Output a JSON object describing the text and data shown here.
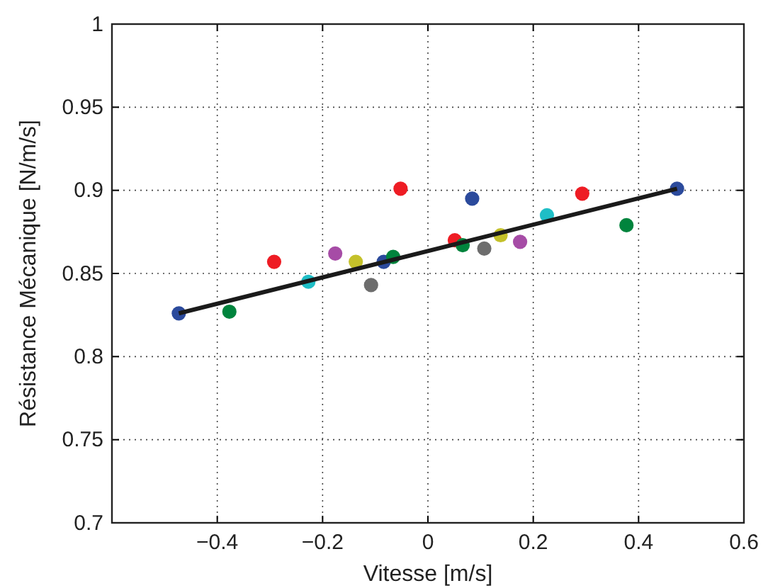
{
  "chart_data": {
    "type": "scatter",
    "xlabel": "Vitesse [m/s]",
    "ylabel": "Résistance Mécanique [N/m/s]",
    "xlim": [
      -0.6,
      0.6
    ],
    "xticks": [
      -0.4,
      -0.2,
      0,
      0.2,
      0.4,
      0.6
    ],
    "ylim": [
      0.7,
      1
    ],
    "yticks": [
      0.7,
      0.75,
      0.8,
      0.85,
      0.9,
      0.95,
      1
    ],
    "grid": true,
    "marker": "circle",
    "series": [
      {
        "x": [
          -0.473,
          -0.377,
          -0.292,
          -0.227,
          -0.176,
          -0.137,
          -0.108,
          -0.084,
          -0.066,
          -0.052,
          0.051,
          0.066,
          0.084,
          0.107,
          0.138,
          0.175,
          0.226,
          0.293,
          0.377,
          0.473
        ],
        "values": [
          0.826,
          0.827,
          0.857,
          0.845,
          0.862,
          0.857,
          0.843,
          0.857,
          0.86,
          0.901,
          0.87,
          0.867,
          0.895,
          0.865,
          0.873,
          0.869,
          0.885,
          0.898,
          0.879,
          0.901
        ],
        "colors": [
          "#2b4a9c",
          "#00843d",
          "#ee1c24",
          "#1fbec6",
          "#a64ca6",
          "#c4c12a",
          "#6d6d6d",
          "#2b4a9c",
          "#00843d",
          "#ee1c24",
          "#ee1c24",
          "#00843d",
          "#2b4a9c",
          "#6d6d6d",
          "#c4c12a",
          "#a64ca6",
          "#1fbec6",
          "#ee1c24",
          "#00843d",
          "#2b4a9c"
        ]
      },
      {
        "type": "line",
        "color": "#1a1a1a",
        "x": [
          -0.473,
          0.473
        ],
        "values": [
          0.826,
          0.901
        ],
        "marker": "none",
        "line_style": "solid"
      }
    ]
  }
}
